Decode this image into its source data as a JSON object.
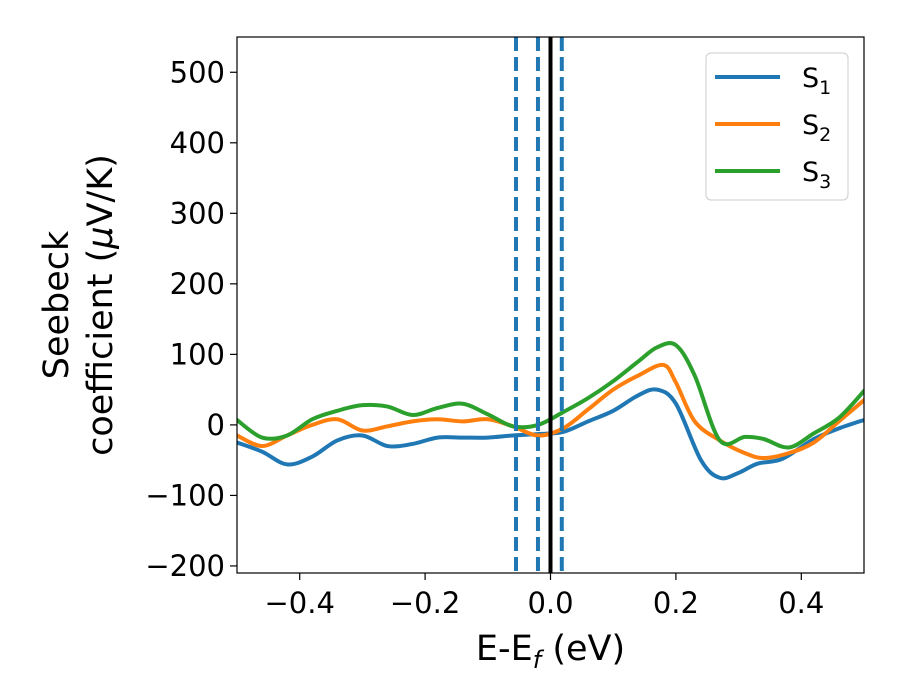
{
  "chart_data": {
    "type": "line",
    "xlabel": "E-E",
    "xlabel_sub": "f",
    "xlabel_unit": " (eV)",
    "ylabel_line1": "Seebeck",
    "ylabel_line2": "coefficient  (",
    "ylabel_mu": "μ",
    "ylabel_unit": "V/K)",
    "xlim": [
      -0.5,
      0.5
    ],
    "ylim": [
      -210,
      550
    ],
    "xticks": [
      -0.4,
      -0.2,
      0.0,
      0.2,
      0.4
    ],
    "xtick_labels": [
      "−0.4",
      "−0.2",
      "0.0",
      "0.2",
      "0.4"
    ],
    "yticks": [
      -200,
      -100,
      0,
      100,
      200,
      300,
      400,
      500
    ],
    "ytick_labels": [
      "−200",
      "−100",
      "0",
      "100",
      "200",
      "300",
      "400",
      "500"
    ],
    "legend_position": "top-right",
    "vlines": [
      {
        "x": -0.055,
        "style": "dashed",
        "color": "#1f77b4"
      },
      {
        "x": -0.02,
        "style": "dashed",
        "color": "#1f77b4"
      },
      {
        "x": 0.0,
        "style": "solid",
        "color": "#000000"
      },
      {
        "x": 0.018,
        "style": "dashed",
        "color": "#1f77b4"
      }
    ],
    "series": [
      {
        "name": "S",
        "sub": "1",
        "color": "#1f77b4",
        "x": [
          -0.5,
          -0.46,
          -0.42,
          -0.38,
          -0.34,
          -0.3,
          -0.26,
          -0.22,
          -0.18,
          -0.14,
          -0.1,
          -0.06,
          -0.02,
          0.02,
          0.06,
          0.1,
          0.14,
          0.17,
          0.2,
          0.24,
          0.27,
          0.3,
          0.33,
          0.37,
          0.42,
          0.46,
          0.5
        ],
        "y": [
          -25,
          -38,
          -56,
          -45,
          -22,
          -15,
          -30,
          -27,
          -18,
          -18,
          -18,
          -15,
          -13,
          -10,
          5,
          20,
          42,
          50,
          30,
          -50,
          -75,
          -68,
          -55,
          -48,
          -20,
          -5,
          7
        ]
      },
      {
        "name": "S",
        "sub": "2",
        "color": "#ff7f0e",
        "x": [
          -0.5,
          -0.46,
          -0.42,
          -0.38,
          -0.34,
          -0.3,
          -0.26,
          -0.22,
          -0.18,
          -0.14,
          -0.1,
          -0.06,
          -0.02,
          0.02,
          0.06,
          0.1,
          0.14,
          0.18,
          0.2,
          0.23,
          0.27,
          0.31,
          0.34,
          0.38,
          0.42,
          0.46,
          0.5
        ],
        "y": [
          -15,
          -30,
          -15,
          0,
          8,
          -8,
          -2,
          5,
          8,
          5,
          8,
          -2,
          -15,
          -5,
          22,
          50,
          70,
          85,
          60,
          5,
          -22,
          -40,
          -47,
          -40,
          -25,
          5,
          35
        ]
      },
      {
        "name": "S",
        "sub": "3",
        "color": "#2ca02c",
        "x": [
          -0.5,
          -0.46,
          -0.42,
          -0.38,
          -0.34,
          -0.3,
          -0.26,
          -0.22,
          -0.18,
          -0.14,
          -0.1,
          -0.06,
          -0.02,
          0.02,
          0.06,
          0.1,
          0.14,
          0.17,
          0.2,
          0.23,
          0.27,
          0.31,
          0.34,
          0.38,
          0.42,
          0.46,
          0.5
        ],
        "y": [
          7,
          -18,
          -15,
          8,
          20,
          28,
          26,
          14,
          24,
          30,
          15,
          -2,
          0,
          18,
          38,
          62,
          90,
          110,
          113,
          70,
          -22,
          -17,
          -20,
          -32,
          -12,
          10,
          48
        ]
      }
    ]
  }
}
